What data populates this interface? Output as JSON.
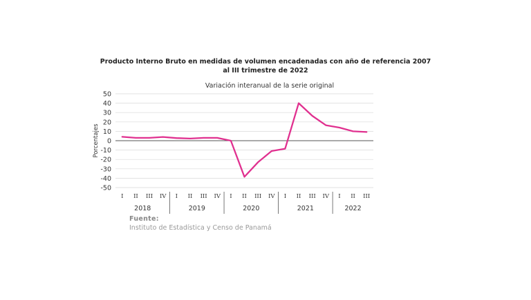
{
  "chart_data": {
    "type": "line",
    "title_line1": "Producto Interno Bruto en medidas de volumen encadenadas con año de referencia 2007",
    "title_line2": "al III trimestre de 2022",
    "subtitle": "Variación interanual de la serie original",
    "ylabel": "Porcentajes",
    "ylim": [
      -50,
      50
    ],
    "yticks": [
      -50,
      -40,
      -30,
      -20,
      -10,
      0,
      10,
      20,
      30,
      40,
      50
    ],
    "quarters": [
      "I",
      "II",
      "III",
      "IV",
      "I",
      "II",
      "III",
      "IV",
      "I",
      "II",
      "III",
      "IV",
      "I",
      "II",
      "III",
      "IV",
      "I",
      "II",
      "III"
    ],
    "years": [
      {
        "label": "2018",
        "count": 4
      },
      {
        "label": "2019",
        "count": 4
      },
      {
        "label": "2020",
        "count": 4
      },
      {
        "label": "2021",
        "count": 4
      },
      {
        "label": "2022",
        "count": 3
      }
    ],
    "series": [
      {
        "values": [
          4.1,
          3.0,
          3.0,
          4.0,
          2.8,
          2.3,
          3.0,
          3.0,
          0.0,
          -38.5,
          -23.0,
          -11.0,
          -8.5,
          40.0,
          26.5,
          16.5,
          14.0,
          10.0,
          9.3
        ]
      }
    ],
    "line_color": "#e0308f",
    "grid": true
  },
  "source": {
    "label": "Fuente:",
    "text": "Instituto de Estadística y Censo de Panamá"
  }
}
